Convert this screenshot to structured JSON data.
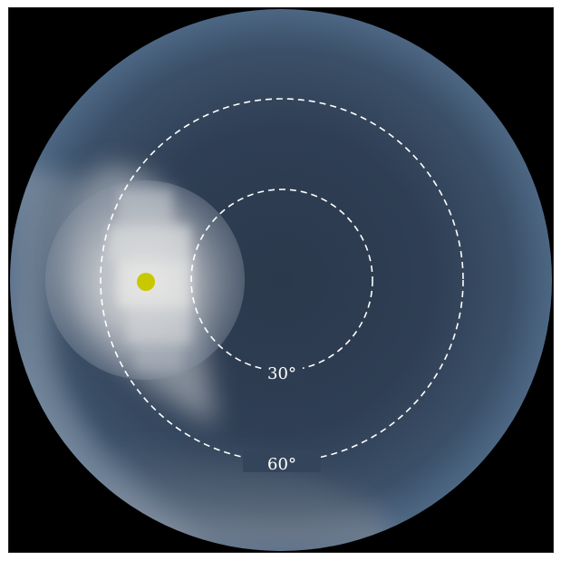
{
  "sky_view": {
    "background_color": "#000000",
    "sky_color_center": "#2c3a4e",
    "sky_color_edge": "#4a6584",
    "haze_color": "#d8d8d4",
    "sun_color": "#c8c800",
    "ring_color": "#ffffff",
    "rings": [
      {
        "zenith_angle_deg": 30,
        "label": "30°"
      },
      {
        "zenith_angle_deg": 60,
        "label": "60°"
      }
    ]
  }
}
